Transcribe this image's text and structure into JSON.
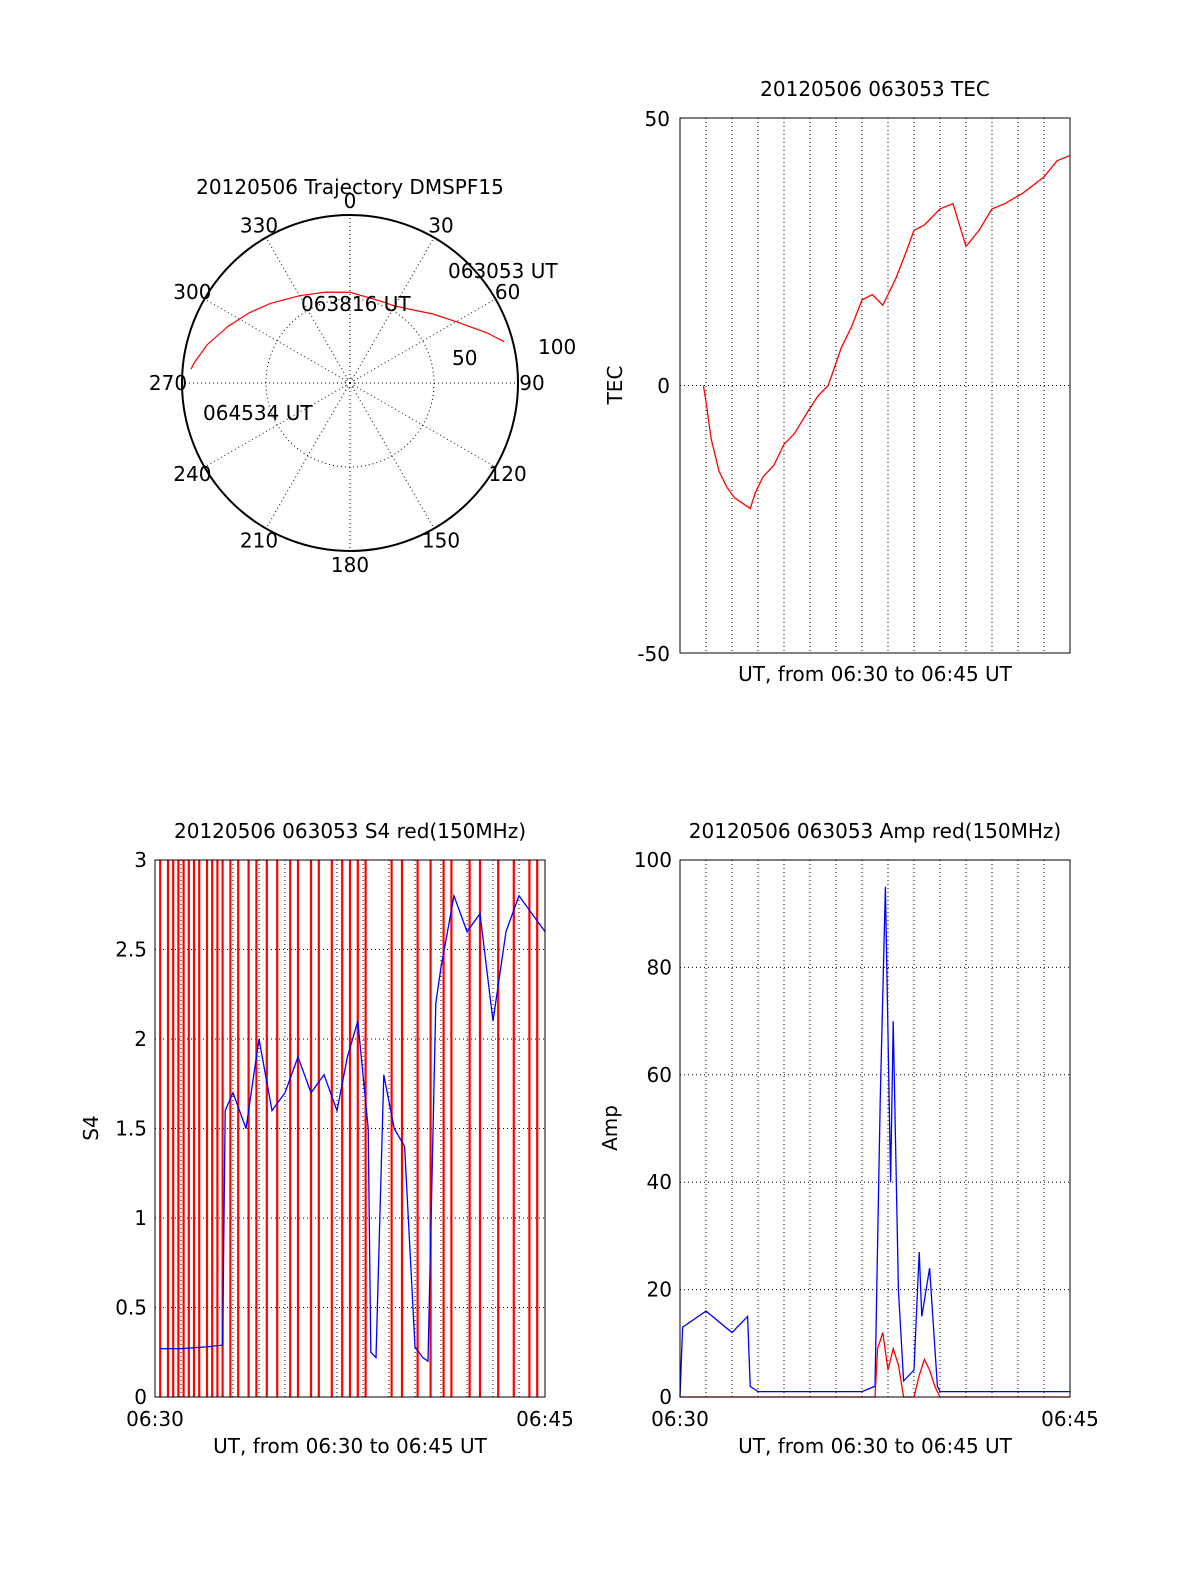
{
  "chart_data": [
    {
      "type": "polar",
      "title": "20120506 Trajectory DMSPF15",
      "azimuth_labels": [
        "0",
        "30",
        "60",
        "90",
        "120",
        "150",
        "180",
        "210",
        "240",
        "270",
        "300",
        "330"
      ],
      "radial_ring_label": "50",
      "outer_ring_label": "100",
      "rlim": [
        0,
        100
      ],
      "grid": true,
      "series": [
        {
          "color": "#ff0000",
          "points": [
            {
              "az": 75,
              "elev": 5
            },
            {
              "az": 70,
              "elev": 13
            },
            {
              "az": 60,
              "elev": 27
            },
            {
              "az": 50,
              "elev": 36
            },
            {
              "az": 40,
              "elev": 43
            },
            {
              "az": 30,
              "elev": 47
            },
            {
              "az": 20,
              "elev": 48
            },
            {
              "az": 0,
              "elev": 46
            },
            {
              "az": -15,
              "elev": 44
            },
            {
              "az": -30,
              "elev": 40
            },
            {
              "az": -45,
              "elev": 33
            },
            {
              "az": -55,
              "elev": 27
            },
            {
              "az": -65,
              "elev": 20
            },
            {
              "az": -75,
              "elev": 12
            },
            {
              "az": -82,
              "elev": 7
            },
            {
              "az": -85,
              "elev": 5
            }
          ]
        }
      ],
      "annotations": [
        {
          "text": "063053 UT",
          "az": 75,
          "elev": 5
        },
        {
          "text": "063816 UT",
          "az": 0,
          "elev": 46
        },
        {
          "text": "064534 UT",
          "az": -85,
          "elev": 5
        }
      ]
    },
    {
      "type": "line",
      "title": "20120506 063053 TEC",
      "xlabel": "UT, from 06:30 to 06:45 UT",
      "ylabel": "TEC",
      "xlim": [
        0,
        15
      ],
      "ylim": [
        -50,
        50
      ],
      "yticks": [
        "50",
        "0",
        "-50"
      ],
      "grid": true,
      "series": [
        {
          "color": "#ff0000",
          "x": [
            0.9,
            1.0,
            1.2,
            1.5,
            1.8,
            2.1,
            2.4,
            2.7,
            2.9,
            3.2,
            3.6,
            4.0,
            4.4,
            4.9,
            5.3,
            5.7,
            6.2,
            6.6,
            7.0,
            7.4,
            7.8,
            8.3,
            8.7,
            9.0,
            9.4,
            10.0,
            10.5,
            11.0,
            11.5,
            12.0,
            12.5,
            13.2,
            14.0,
            14.5,
            15.0
          ],
          "y": [
            0,
            -3,
            -10,
            -16,
            -19,
            -21,
            -22,
            -23,
            -20,
            -17,
            -15,
            -11,
            -9,
            -5,
            -2,
            0,
            7,
            11,
            16,
            17,
            15,
            20,
            25,
            29,
            30,
            33,
            34,
            26,
            29,
            33,
            34,
            36,
            39,
            42,
            43
          ]
        }
      ]
    },
    {
      "type": "line",
      "title": "20120506 063053 S4 red(150MHz)",
      "xlabel": "UT, from 06:30 to 06:45 UT",
      "ylabel": "S4",
      "xlim": [
        0,
        15
      ],
      "ylim": [
        0,
        3
      ],
      "xticks": [
        "06:30",
        "06:45"
      ],
      "yticks": [
        "0",
        "0.5",
        "1",
        "1.5",
        "2",
        "2.5",
        "3"
      ],
      "grid": true,
      "series": [
        {
          "color": "#ff0000",
          "spike_x": [
            0.2,
            0.5,
            0.7,
            0.9,
            1.1,
            1.3,
            1.5,
            1.7,
            2.0,
            2.2,
            2.4,
            2.6,
            2.9,
            3.2,
            3.6,
            3.9,
            4.3,
            4.7,
            5.2,
            5.5,
            6.0,
            6.3,
            6.8,
            7.2,
            7.5,
            7.8,
            8.1,
            9.1,
            9.5,
            10.1,
            10.6,
            11.1,
            11.4,
            12.1,
            12.5,
            13.2,
            13.8,
            14.4,
            14.7
          ],
          "y_low": 0,
          "y_high": 3
        },
        {
          "color": "#0000ff",
          "x": [
            0.2,
            1.0,
            2.0,
            2.6,
            2.7,
            3.0,
            3.5,
            4.0,
            4.5,
            5.0,
            5.5,
            6.0,
            6.5,
            7.0,
            7.4,
            7.8,
            8.2,
            8.3,
            8.5,
            8.8,
            9.2,
            9.6,
            10.0,
            10.3,
            10.5,
            10.8,
            11.0,
            11.5,
            12.0,
            12.5,
            13.0,
            13.5,
            14.0,
            14.5,
            15.0
          ],
          "y": [
            0.27,
            0.27,
            0.28,
            0.29,
            1.6,
            1.7,
            1.5,
            2.0,
            1.6,
            1.7,
            1.9,
            1.7,
            1.8,
            1.6,
            1.9,
            2.1,
            1.5,
            0.25,
            0.22,
            1.8,
            1.5,
            1.4,
            0.28,
            0.22,
            0.2,
            2.2,
            2.4,
            2.8,
            2.6,
            2.7,
            2.1,
            2.6,
            2.8,
            2.7,
            2.6
          ]
        }
      ]
    },
    {
      "type": "line",
      "title": "20120506 063053 Amp red(150MHz)",
      "xlabel": "UT, from 06:30 to 06:45 UT",
      "ylabel": "Amp",
      "xlim": [
        0,
        15
      ],
      "ylim": [
        0,
        100
      ],
      "xticks": [
        "06:30",
        "06:45"
      ],
      "yticks": [
        "0",
        "20",
        "40",
        "60",
        "80",
        "100"
      ],
      "grid": true,
      "series": [
        {
          "color": "#0000ff",
          "x": [
            0.0,
            0.1,
            1.0,
            2.0,
            2.6,
            2.7,
            3.0,
            4.0,
            5.0,
            6.0,
            7.0,
            7.5,
            7.7,
            7.9,
            8.1,
            8.2,
            8.4,
            8.6,
            9.0,
            9.2,
            9.3,
            9.6,
            9.9,
            10.0,
            11.0,
            12.0,
            13.0,
            14.0,
            15.0
          ],
          "y": [
            0,
            13,
            16,
            12,
            15,
            2,
            1,
            1,
            1,
            1,
            1,
            2,
            55,
            95,
            40,
            70,
            20,
            3,
            5,
            27,
            15,
            24,
            2,
            1,
            1,
            1,
            1,
            1,
            1
          ]
        },
        {
          "color": "#ff0000",
          "x": [
            0.0,
            2.6,
            5.0,
            7.5,
            7.6,
            7.8,
            8.0,
            8.2,
            8.4,
            8.6,
            9.0,
            9.2,
            9.4,
            9.6,
            9.8,
            10.0,
            12.0,
            15.0
          ],
          "y": [
            0,
            0,
            0,
            0,
            9,
            12,
            5,
            9,
            6,
            0,
            0,
            4,
            7,
            5,
            2,
            0,
            0,
            0
          ]
        }
      ]
    }
  ]
}
